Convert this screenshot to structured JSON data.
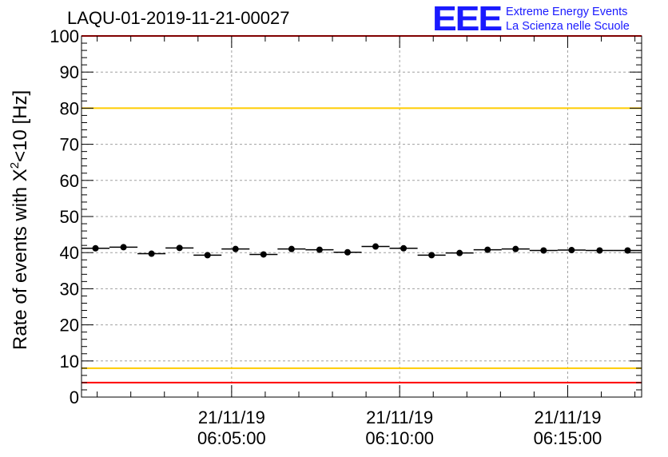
{
  "header": {
    "run_title": "LAQU-01-2019-11-21-00027",
    "logo_mark": "EEE",
    "logo_line1": "Extreme Energy Events",
    "logo_line2": "La Scienza nelle Scuole"
  },
  "colors": {
    "red_limit": "#ff0000",
    "yellow_limit": "#ffcc00",
    "logo": "#1a1aff",
    "marker": "#000000",
    "grid": "#a0a0a0"
  },
  "chart_data": {
    "type": "scatter",
    "title": "LAQU-01-2019-11-21-00027",
    "ylabel": "Rate of events with X",
    "ylabel_sup": "2",
    "ylabel_tail": "<10 [Hz]",
    "xlabel": "",
    "ylim": [
      0,
      100
    ],
    "xlim": [
      "06:00:32",
      "06:17:12"
    ],
    "y_ticks": [
      "0",
      "10",
      "20",
      "30",
      "40",
      "50",
      "60",
      "70",
      "80",
      "90",
      "100"
    ],
    "x_ticks": [
      {
        "time": "06:05:00",
        "date_label": "21/11/19",
        "time_label": "06:05:00"
      },
      {
        "time": "06:10:00",
        "date_label": "21/11/19",
        "time_label": "06:10:00"
      },
      {
        "time": "06:15:00",
        "date_label": "21/11/19",
        "time_label": "06:15:00"
      }
    ],
    "grid": true,
    "bin_width_seconds": 50,
    "series": [
      {
        "x": [
          "06:00:57",
          "06:01:47",
          "06:02:37",
          "06:03:27",
          "06:04:17",
          "06:05:07",
          "06:05:57",
          "06:06:47",
          "06:07:37",
          "06:08:27",
          "06:09:17",
          "06:10:07",
          "06:10:57",
          "06:11:47",
          "06:12:37",
          "06:13:27",
          "06:14:17",
          "06:15:07",
          "06:15:57",
          "06:16:47"
        ],
        "y": [
          41.2,
          41.5,
          39.7,
          41.3,
          39.3,
          41.0,
          39.5,
          41.0,
          40.8,
          40.1,
          41.7,
          41.2,
          39.3,
          39.9,
          40.8,
          41.0,
          40.6,
          40.7,
          40.6,
          40.6
        ]
      }
    ],
    "reference_lines": [
      {
        "y": 4,
        "color": "red"
      },
      {
        "y": 8,
        "color": "yellow"
      },
      {
        "y": 80,
        "color": "yellow"
      },
      {
        "y": 100,
        "color": "red"
      }
    ]
  }
}
